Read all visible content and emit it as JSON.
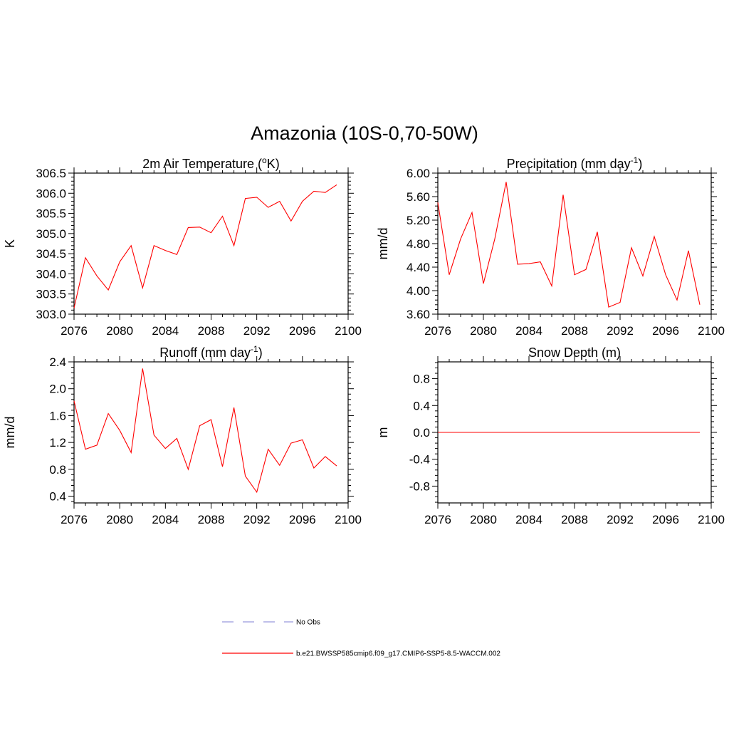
{
  "figure_title": "Amazonia (10S-0,70-50W)",
  "legend": [
    {
      "label": "No Obs",
      "color": "#9999dd",
      "dash": true
    },
    {
      "label": "b.e21.BWSSP585cmip6.f09_g17.CMIP6-SSP5-8.5-WACCM.002",
      "color": "#ff0000",
      "dash": false
    }
  ],
  "chart_data": [
    {
      "type": "line",
      "title": "2m Air Temperature (",
      "title_sup": "o",
      "title_suffix": "K)",
      "ylabel": "K",
      "xlim": [
        2076,
        2100
      ],
      "ylim": [
        303.0,
        306.5
      ],
      "x_ticks": [
        2076,
        2080,
        2084,
        2088,
        2092,
        2096,
        2100
      ],
      "y_ticks": [
        "303.0",
        "303.5",
        "304.0",
        "304.5",
        "305.0",
        "305.5",
        "306.0",
        "306.5"
      ],
      "x": [
        2076,
        2077,
        2078,
        2079,
        2080,
        2081,
        2082,
        2083,
        2084,
        2085,
        2086,
        2087,
        2088,
        2089,
        2090,
        2091,
        2092,
        2093,
        2094,
        2095,
        2096,
        2097,
        2098,
        2099
      ],
      "series": [
        {
          "color": "#ff0000",
          "values": [
            303.15,
            304.4,
            303.95,
            303.6,
            304.3,
            304.7,
            303.65,
            304.7,
            304.58,
            304.48,
            305.15,
            305.16,
            305.02,
            305.43,
            304.7,
            305.87,
            305.9,
            305.65,
            305.8,
            305.31,
            305.8,
            306.05,
            306.02,
            306.21
          ]
        }
      ]
    },
    {
      "type": "line",
      "title": "Precipitation (mm day",
      "title_sup": "-1",
      "title_suffix": ")",
      "ylabel": "mm/d",
      "xlim": [
        2076,
        2100
      ],
      "ylim": [
        3.6,
        6.0
      ],
      "x_ticks": [
        2076,
        2080,
        2084,
        2088,
        2092,
        2096,
        2100
      ],
      "y_ticks": [
        "3.60",
        "4.00",
        "4.40",
        "4.80",
        "5.20",
        "5.60",
        "6.00"
      ],
      "x": [
        2076,
        2077,
        2078,
        2079,
        2080,
        2081,
        2082,
        2083,
        2084,
        2085,
        2086,
        2087,
        2088,
        2089,
        2090,
        2091,
        2092,
        2093,
        2094,
        2095,
        2096,
        2097,
        2098,
        2099
      ],
      "series": [
        {
          "color": "#ff0000",
          "values": [
            5.5,
            4.27,
            4.88,
            5.33,
            4.12,
            4.88,
            5.85,
            4.45,
            4.46,
            4.49,
            4.08,
            5.63,
            4.27,
            4.36,
            5.0,
            3.72,
            3.8,
            4.73,
            4.25,
            4.92,
            4.27,
            3.84,
            4.68,
            3.76
          ]
        }
      ]
    },
    {
      "type": "line",
      "title": "Runoff (mm day",
      "title_sup": "-1",
      "title_suffix": ")",
      "ylabel": "mm/d",
      "xlim": [
        2076,
        2100
      ],
      "ylim": [
        0.3,
        2.4
      ],
      "x_ticks": [
        2076,
        2080,
        2084,
        2088,
        2092,
        2096,
        2100
      ],
      "y_ticks": [
        "0.4",
        "0.8",
        "1.2",
        "1.6",
        "2.0",
        "2.4"
      ],
      "x": [
        2076,
        2077,
        2078,
        2079,
        2080,
        2081,
        2082,
        2083,
        2084,
        2085,
        2086,
        2087,
        2088,
        2089,
        2090,
        2091,
        2092,
        2093,
        2094,
        2095,
        2096,
        2097,
        2098,
        2099
      ],
      "series": [
        {
          "color": "#ff0000",
          "values": [
            1.82,
            1.1,
            1.16,
            1.63,
            1.38,
            1.05,
            2.3,
            1.31,
            1.11,
            1.26,
            0.8,
            1.45,
            1.54,
            0.84,
            1.72,
            0.7,
            0.46,
            1.1,
            0.86,
            1.19,
            1.24,
            0.82,
            0.99,
            0.85
          ]
        }
      ]
    },
    {
      "type": "line",
      "title": "Snow Depth (m)",
      "title_sup": "",
      "title_suffix": "",
      "ylabel": "m",
      "xlim": [
        2076,
        2100
      ],
      "ylim": [
        -1.05,
        1.05
      ],
      "x_ticks": [
        2076,
        2080,
        2084,
        2088,
        2092,
        2096,
        2100
      ],
      "y_ticks": [
        "-0.8",
        "-0.4",
        "0.0",
        "0.4",
        "0.8"
      ],
      "x": [
        2076,
        2077,
        2078,
        2079,
        2080,
        2081,
        2082,
        2083,
        2084,
        2085,
        2086,
        2087,
        2088,
        2089,
        2090,
        2091,
        2092,
        2093,
        2094,
        2095,
        2096,
        2097,
        2098,
        2099
      ],
      "series": [
        {
          "color": "#ff0000",
          "values": [
            0,
            0,
            0,
            0,
            0,
            0,
            0,
            0,
            0,
            0,
            0,
            0,
            0,
            0,
            0,
            0,
            0,
            0,
            0,
            0,
            0,
            0,
            0,
            0
          ]
        }
      ]
    }
  ]
}
